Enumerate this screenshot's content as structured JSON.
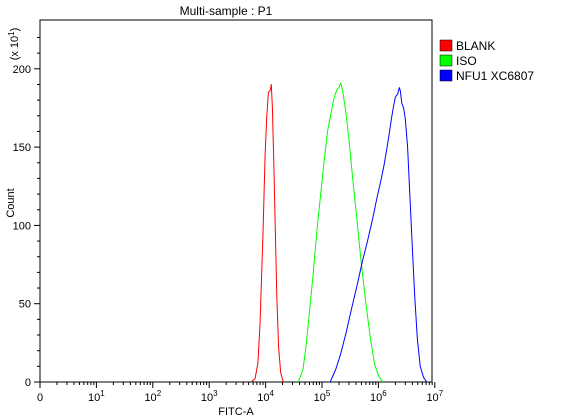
{
  "chart_data": {
    "type": "line",
    "title": "Multi-sample : P1",
    "xlabel": "FITC-A",
    "ylabel": "Count",
    "y_multiplier": "(x 10^1)",
    "x_scale": "log",
    "xlim": [
      0,
      10000000
    ],
    "ylim": [
      0,
      220
    ],
    "x_ticks": [
      {
        "base": "0",
        "exp": ""
      },
      {
        "base": "10",
        "exp": "1"
      },
      {
        "base": "10",
        "exp": "2"
      },
      {
        "base": "10",
        "exp": "3"
      },
      {
        "base": "10",
        "exp": "4"
      },
      {
        "base": "10",
        "exp": "5"
      },
      {
        "base": "10",
        "exp": "6"
      },
      {
        "base": "10",
        "exp": "7"
      }
    ],
    "y_ticks": [
      "0",
      "50",
      "100",
      "150",
      "200"
    ],
    "legend_position": "top-right",
    "series": [
      {
        "name": "BLANK",
        "color": "#ff0000",
        "points": [
          [
            5500,
            0
          ],
          [
            6500,
            2
          ],
          [
            7300,
            12
          ],
          [
            8000,
            38
          ],
          [
            9000,
            95
          ],
          [
            9800,
            145
          ],
          [
            10500,
            170
          ],
          [
            11200,
            185
          ],
          [
            12000,
            186
          ],
          [
            12600,
            190
          ],
          [
            13200,
            175
          ],
          [
            14000,
            140
          ],
          [
            14800,
            100
          ],
          [
            15800,
            55
          ],
          [
            17000,
            22
          ],
          [
            18500,
            6
          ],
          [
            20500,
            0
          ]
        ]
      },
      {
        "name": "ISO",
        "color": "#00ff00",
        "points": [
          [
            38000,
            0
          ],
          [
            46000,
            8
          ],
          [
            53000,
            25
          ],
          [
            60000,
            45
          ],
          [
            70000,
            70
          ],
          [
            82000,
            98
          ],
          [
            95000,
            120
          ],
          [
            110000,
            142
          ],
          [
            125000,
            160
          ],
          [
            145000,
            172
          ],
          [
            165000,
            182
          ],
          [
            185000,
            187
          ],
          [
            200000,
            188
          ],
          [
            215000,
            191
          ],
          [
            235000,
            185
          ],
          [
            265000,
            172
          ],
          [
            300000,
            155
          ],
          [
            350000,
            130
          ],
          [
            420000,
            102
          ],
          [
            500000,
            75
          ],
          [
            600000,
            50
          ],
          [
            720000,
            28
          ],
          [
            850000,
            12
          ],
          [
            1000000,
            4
          ],
          [
            1200000,
            0
          ]
        ]
      },
      {
        "name": "NFU1 XC6807",
        "color": "#0000ff",
        "points": [
          [
            140000,
            0
          ],
          [
            175000,
            8
          ],
          [
            215000,
            18
          ],
          [
            270000,
            32
          ],
          [
            340000,
            48
          ],
          [
            420000,
            62
          ],
          [
            520000,
            77
          ],
          [
            640000,
            90
          ],
          [
            800000,
            105
          ],
          [
            950000,
            118
          ],
          [
            1100000,
            128
          ],
          [
            1250000,
            138
          ],
          [
            1400000,
            148
          ],
          [
            1550000,
            158
          ],
          [
            1700000,
            168
          ],
          [
            1850000,
            176
          ],
          [
            2000000,
            182
          ],
          [
            2200000,
            184
          ],
          [
            2350000,
            188
          ],
          [
            2450000,
            186
          ],
          [
            2600000,
            178
          ],
          [
            2800000,
            175
          ],
          [
            3000000,
            168
          ],
          [
            3300000,
            150
          ],
          [
            3600000,
            120
          ],
          [
            4000000,
            85
          ],
          [
            4400000,
            55
          ],
          [
            4900000,
            28
          ],
          [
            5500000,
            10
          ],
          [
            6300000,
            3
          ],
          [
            7200000,
            0
          ]
        ]
      }
    ]
  }
}
